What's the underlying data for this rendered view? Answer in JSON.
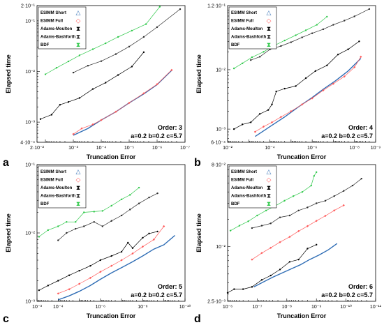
{
  "colors": {
    "ESIMM Short": "#2f6db5",
    "ESIMM Full": "#ff5a5a",
    "Adams-Moulton": "#000000",
    "Adams-Bashforth": "#2b2b2b",
    "BDF": "#2fc84a"
  },
  "chart_data": [
    {
      "type": "line",
      "panel_label": "a",
      "xlabel": "Truncation Error",
      "ylabel": "Elapsed time",
      "x_scale": "log",
      "y_scale": "log",
      "x_reversed": true,
      "xlim": [
        0.02,
        1e-07
      ],
      "ylim": [
        0.0004,
        0.2
      ],
      "xticks": [
        {
          "v": 0.02,
          "label": "2·10⁻²"
        },
        {
          "v": 0.001,
          "label": "10⁻³"
        },
        {
          "v": 0.0001,
          "label": "10⁻⁴"
        },
        {
          "v": 1e-05,
          "label": "10⁻⁵"
        },
        {
          "v": 1e-06,
          "label": "10⁻⁶"
        },
        {
          "v": 1e-07,
          "label": "10⁻⁷"
        }
      ],
      "yticks": [
        {
          "v": 0.0004,
          "label": "4·10⁻⁴"
        },
        {
          "v": 0.001,
          "label": "10⁻³"
        },
        {
          "v": 0.01,
          "label": "10⁻²"
        },
        {
          "v": 0.1,
          "label": "10⁻¹"
        },
        {
          "v": 0.2,
          "label": "2·10⁻¹"
        }
      ],
      "annotations": [
        "Order: 3",
        "a=0.2 b=0.2 c=5.7"
      ],
      "legend": [
        "ESIMM Short",
        "ESIMM Full",
        "Adams-Moulton",
        "Adams-Bashforth",
        "BDF"
      ],
      "series": [
        {
          "name": "ESIMM Short",
          "x": [
            0.001,
            0.0003,
            0.0001,
            3e-05,
            1e-05,
            3e-06,
            1e-06,
            3e-07
          ],
          "y": [
            0.00055,
            0.00075,
            0.0011,
            0.0016,
            0.0024,
            0.0036,
            0.0055,
            0.0105
          ]
        },
        {
          "name": "ESIMM Full",
          "x": [
            0.001,
            0.0005,
            0.0002,
            0.0001,
            3e-05,
            1e-05,
            3e-06,
            1e-06,
            3e-07
          ],
          "y": [
            0.00058,
            0.00075,
            0.0009,
            0.0011,
            0.0016,
            0.0024,
            0.0037,
            0.0056,
            0.0107
          ]
        },
        {
          "name": "Adams-Moulton",
          "x": [
            0.015,
            0.006,
            0.003,
            0.0015,
            0.0006,
            0.0002,
            7e-05,
            2.5e-05,
            8e-06,
            3e-06
          ],
          "y": [
            0.00115,
            0.0014,
            0.0022,
            0.0025,
            0.003,
            0.0045,
            0.006,
            0.0085,
            0.0125,
            0.024
          ]
        },
        {
          "name": "Adams-Bashforth",
          "x": [
            0.001,
            0.0003,
            0.0001,
            3e-05,
            1e-05,
            3e-06,
            1e-06,
            1.5e-07
          ],
          "y": [
            0.0095,
            0.013,
            0.016,
            0.022,
            0.031,
            0.048,
            0.075,
            0.17
          ]
        },
        {
          "name": "BDF",
          "x": [
            0.01,
            0.004,
            0.0015,
            0.0006,
            0.0002,
            7e-05,
            2.5e-05,
            8e-06,
            2.5e-06,
            8e-07
          ],
          "y": [
            0.0088,
            0.0118,
            0.0158,
            0.0208,
            0.0275,
            0.036,
            0.048,
            0.064,
            0.086,
            0.19
          ]
        }
      ]
    },
    {
      "type": "line",
      "panel_label": "b",
      "xlabel": "Truncation Error",
      "ylabel": "Elapsed time",
      "x_scale": "log",
      "y_scale": "log",
      "x_reversed": true,
      "xlim": [
        0.01,
        1e-09
      ],
      "ylim": [
        0.0006,
        0.12
      ],
      "xticks": [
        {
          "v": 0.01,
          "label": "10⁻²"
        },
        {
          "v": 0.0001,
          "label": "10⁻⁴"
        },
        {
          "v": 1e-06,
          "label": "10⁻⁶"
        },
        {
          "v": 1e-08,
          "label": "10⁻⁸"
        },
        {
          "v": 1e-09,
          "label": "10⁻⁹"
        }
      ],
      "yticks": [
        {
          "v": 0.0006,
          "label": "6·10⁻⁴"
        },
        {
          "v": 0.001,
          "label": "10⁻³"
        },
        {
          "v": 0.01,
          "label": "10⁻²"
        },
        {
          "v": 0.12,
          "label": "1.2·10⁻¹"
        }
      ],
      "annotations": [
        "Order: 4",
        "a=0.2 b=0.2 c=5.7"
      ],
      "legend": [
        "ESIMM Short",
        "ESIMM Full",
        "Adams-Moulton",
        "Adams-Bashforth",
        "BDF"
      ],
      "series": [
        {
          "name": "ESIMM Short",
          "x": [
            0.0005,
            0.0001,
            2e-05,
            5e-06,
            1e-06,
            3e-07,
            8e-08,
            2e-08,
            5e-09
          ],
          "y": [
            0.00075,
            0.0011,
            0.0016,
            0.0023,
            0.0034,
            0.0047,
            0.0065,
            0.0095,
            0.0155
          ]
        },
        {
          "name": "ESIMM Full",
          "x": [
            0.0005,
            0.0002,
            8e-05,
            3e-05,
            1e-05,
            3e-06,
            1e-06,
            3e-07,
            1e-07,
            3e-08,
            1e-08,
            5e-09
          ],
          "y": [
            0.0009,
            0.0011,
            0.0013,
            0.0016,
            0.002,
            0.0026,
            0.0033,
            0.0045,
            0.0058,
            0.0077,
            0.011,
            0.0165
          ]
        },
        {
          "name": "Adams-Moulton",
          "x": [
            0.005,
            0.002,
            0.0008,
            0.0003,
            0.00012,
            8e-05,
            5e-05,
            2e-05,
            6e-06,
            2e-06,
            7e-07,
            2e-07,
            6e-08,
            2e-08,
            6e-09
          ],
          "y": [
            0.001,
            0.0012,
            0.0013,
            0.0018,
            0.0021,
            0.0026,
            0.0043,
            0.0048,
            0.0053,
            0.0072,
            0.0095,
            0.0118,
            0.018,
            0.022,
            0.03
          ]
        },
        {
          "name": "Adams-Bashforth",
          "x": [
            0.0008,
            0.0003,
            0.0001,
            3e-05,
            1e-05,
            3e-06,
            1e-06,
            3e-07,
            1e-07,
            3e-08,
            1e-08,
            2e-09
          ],
          "y": [
            0.0145,
            0.0165,
            0.022,
            0.025,
            0.029,
            0.035,
            0.041,
            0.048,
            0.057,
            0.067,
            0.079,
            0.105
          ]
        },
        {
          "name": "BDF",
          "x": [
            0.005,
            0.002,
            0.0007,
            0.0002,
            7e-05,
            2e-05,
            6e-06,
            2e-06,
            6e-07,
            2e-07
          ],
          "y": [
            0.0105,
            0.0128,
            0.0162,
            0.02,
            0.025,
            0.031,
            0.038,
            0.046,
            0.057,
            0.078
          ]
        }
      ]
    },
    {
      "type": "line",
      "panel_label": "c",
      "xlabel": "Truncation Error",
      "ylabel": "Elapsed time",
      "x_scale": "log",
      "y_scale": "log",
      "x_reversed": true,
      "xlim": [
        0.001,
        1e-10
      ],
      "ylim": [
        0.001,
        0.1
      ],
      "xticks": [
        {
          "v": 0.001,
          "label": "10⁻³"
        },
        {
          "v": 0.0001,
          "label": "10⁻⁴"
        },
        {
          "v": 1e-06,
          "label": "10⁻⁶"
        },
        {
          "v": 1e-08,
          "label": "10⁻⁸"
        },
        {
          "v": 1e-10,
          "label": "10⁻¹⁰"
        }
      ],
      "yticks": [
        {
          "v": 0.001,
          "label": "10⁻³"
        },
        {
          "v": 0.01,
          "label": "10⁻²"
        },
        {
          "v": 0.1,
          "label": "10⁻¹"
        }
      ],
      "annotations": [
        "Order: 5",
        "a=0.2 b=0.2 c=5.7"
      ],
      "legend": [
        "ESIMM Short",
        "ESIMM Full",
        "Adams-Moulton",
        "Adams-Bashforth",
        "BDF"
      ],
      "series": [
        {
          "name": "ESIMM Short",
          "x": [
            0.0001,
            3e-05,
            1e-05,
            3e-06,
            1e-06,
            3e-07,
            1e-07,
            3e-08,
            1e-08,
            3e-09,
            1e-09,
            3e-10
          ],
          "y": [
            0.00105,
            0.0012,
            0.0014,
            0.0017,
            0.0021,
            0.0026,
            0.0031,
            0.0038,
            0.0046,
            0.0058,
            0.0067,
            0.0092
          ]
        },
        {
          "name": "ESIMM Full",
          "x": [
            0.0001,
            3e-05,
            1e-05,
            3e-06,
            1e-06,
            3e-07,
            1e-07,
            3e-08,
            1e-08,
            3e-09,
            1e-09
          ],
          "y": [
            0.0013,
            0.0015,
            0.0018,
            0.0022,
            0.0027,
            0.0033,
            0.004,
            0.005,
            0.0063,
            0.008,
            0.0125
          ]
        },
        {
          "name": "Adams-Moulton",
          "x": [
            0.0008,
            0.0003,
            0.0001,
            3e-05,
            1e-05,
            3e-06,
            1e-06,
            3e-07,
            1e-07,
            5e-08,
            3e-08,
            1e-08,
            5e-09,
            2e-09
          ],
          "y": [
            0.00145,
            0.0017,
            0.002,
            0.0024,
            0.0028,
            0.0033,
            0.004,
            0.0046,
            0.0053,
            0.0072,
            0.006,
            0.0085,
            0.0098,
            0.0105
          ]
        },
        {
          "name": "Adams-Bashforth",
          "x": [
            0.0001,
            4e-05,
            1.5e-05,
            6e-06,
            2e-06,
            8e-07,
            3e-07,
            1e-07,
            4e-08,
            1.5e-08,
            5e-09,
            2e-09
          ],
          "y": [
            0.0078,
            0.01,
            0.0115,
            0.0125,
            0.0145,
            0.0125,
            0.015,
            0.018,
            0.022,
            0.027,
            0.033,
            0.038
          ]
        },
        {
          "name": "BDF",
          "x": [
            0.0008,
            0.0003,
            0.0001,
            4e-05,
            1.5e-05,
            6e-06,
            2e-06,
            8e-07,
            3e-07,
            1e-07,
            4e-08,
            1.5e-08
          ],
          "y": [
            0.0088,
            0.011,
            0.0125,
            0.0145,
            0.0145,
            0.02,
            0.0205,
            0.021,
            0.025,
            0.031,
            0.036,
            0.046
          ]
        }
      ]
    },
    {
      "type": "line",
      "panel_label": "d",
      "xlabel": "Truncation Error",
      "ylabel": "Elapsed time",
      "x_scale": "log",
      "y_scale": "log",
      "x_reversed": true,
      "xlim": [
        1e-06,
        1e-11
      ],
      "ylim": [
        0.0025,
        0.08
      ],
      "xticks": [
        {
          "v": 1e-06,
          "label": "10⁻⁶"
        },
        {
          "v": 1e-07,
          "label": "10⁻⁷"
        },
        {
          "v": 1e-08,
          "label": "10⁻⁸"
        },
        {
          "v": 1e-09,
          "label": "10⁻⁹"
        },
        {
          "v": 1e-10,
          "label": "10⁻¹⁰"
        },
        {
          "v": 1e-11,
          "label": "10⁻¹¹"
        }
      ],
      "yticks": [
        {
          "v": 0.0025,
          "label": "2.5·10⁻³"
        },
        {
          "v": 0.01,
          "label": "10⁻²"
        },
        {
          "v": 0.08,
          "label": "8·10⁻²"
        }
      ],
      "annotations": [
        "Order: 6",
        "a=0.2 b=0.2 c=5.7"
      ],
      "legend": [
        "ESIMM Short",
        "ESIMM Full",
        "Adams-Moulton",
        "Adams-Bashforth",
        "BDF"
      ],
      "series": [
        {
          "name": "ESIMM Short",
          "x": [
            1.3e-07,
            6e-08,
            3e-08,
            1.5e-08,
            7e-09,
            3.5e-09,
            1.7e-09,
            8e-10,
            4e-10,
            2e-10
          ],
          "y": [
            0.0036,
            0.0041,
            0.0046,
            0.0051,
            0.0057,
            0.0063,
            0.0072,
            0.0081,
            0.0092,
            0.0108
          ]
        },
        {
          "name": "ESIMM Full",
          "x": [
            1.5e-07,
            7e-08,
            3.5e-08,
            1.7e-08,
            8e-09,
            4e-09,
            2e-09,
            1e-09,
            5e-10,
            2.5e-10,
            1.2e-10
          ],
          "y": [
            0.0072,
            0.0085,
            0.0097,
            0.0112,
            0.0128,
            0.0148,
            0.0168,
            0.0192,
            0.0218,
            0.025,
            0.0285
          ]
        },
        {
          "name": "Adams-Moulton",
          "x": [
            1e-06,
            6e-07,
            3e-07,
            1.5e-07,
            7e-08,
            3.5e-08,
            1.7e-08,
            8e-09,
            4e-09,
            2e-09,
            1e-09
          ],
          "y": [
            0.0031,
            0.0034,
            0.0034,
            0.0036,
            0.0043,
            0.0048,
            0.0056,
            0.0068,
            0.0072,
            0.0095,
            0.0105
          ]
        },
        {
          "name": "Adams-Bashforth",
          "x": [
            1.5e-07,
            7e-08,
            3.5e-08,
            1.7e-08,
            8e-09,
            4e-09,
            2e-09,
            1e-09,
            5e-10,
            2.5e-10,
            1.2e-10,
            6e-11,
            3e-11
          ],
          "y": [
            0.016,
            0.017,
            0.018,
            0.021,
            0.022,
            0.025,
            0.027,
            0.03,
            0.032,
            0.036,
            0.041,
            0.047,
            0.056
          ]
        },
        {
          "name": "BDF",
          "x": [
            8e-07,
            4e-07,
            2e-07,
            1e-07,
            5e-08,
            2.5e-08,
            1.2e-08,
            6e-09,
            3e-09,
            1.5e-09,
            1.2e-09,
            1e-09
          ],
          "y": [
            0.015,
            0.017,
            0.019,
            0.022,
            0.025,
            0.028,
            0.032,
            0.036,
            0.04,
            0.047,
            0.06,
            0.066
          ]
        }
      ]
    }
  ]
}
